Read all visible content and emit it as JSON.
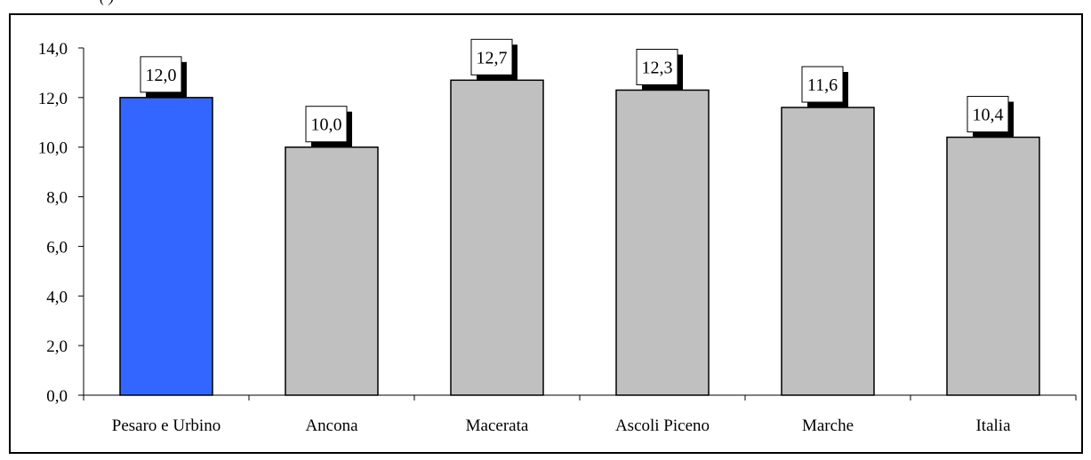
{
  "caption_fragment": "(                                             )",
  "chart_data": {
    "type": "bar",
    "categories": [
      "Pesaro e Urbino",
      "Ancona",
      "Macerata",
      "Ascoli Piceno",
      "Marche",
      "Italia"
    ],
    "values": [
      12.0,
      10.0,
      12.7,
      12.3,
      11.6,
      10.4
    ],
    "value_labels": [
      "12,0",
      "10,0",
      "12,7",
      "12,3",
      "11,6",
      "10,4"
    ],
    "title": "",
    "xlabel": "",
    "ylabel": "",
    "ylim": [
      0,
      14
    ],
    "yticks": [
      0,
      2,
      4,
      6,
      8,
      10,
      12,
      14
    ],
    "ytick_labels": [
      "0,0",
      "2,0",
      "4,0",
      "6,0",
      "8,0",
      "10,0",
      "12,0",
      "14,0"
    ],
    "grid": false,
    "legend": "none",
    "colors": {
      "highlight": "#3366ff",
      "default": "#c0c0c0",
      "outline": "#000000"
    },
    "highlight_index": 0
  }
}
